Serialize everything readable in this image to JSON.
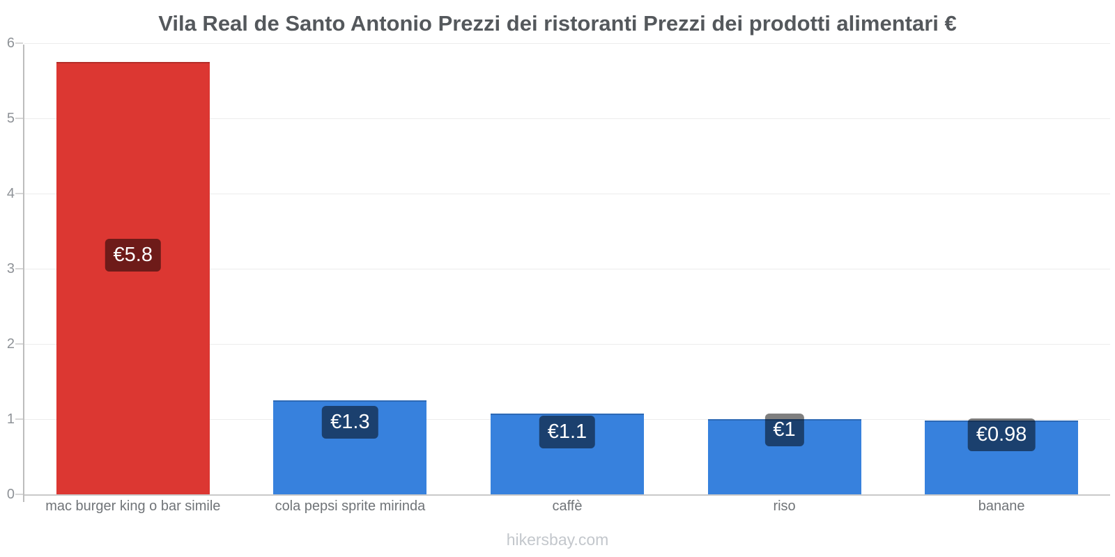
{
  "title": "Vila Real de Santo Antonio Prezzi dei ristoranti Prezzi dei prodotti alimentari €",
  "footer": {
    "watermark": "hikersbay.com"
  },
  "chart_data": {
    "type": "bar",
    "title": "Vila Real de Santo Antonio Prezzi dei ristoranti Prezzi dei prodotti alimentari €",
    "categories": [
      "mac burger king o bar simile",
      "cola pepsi sprite mirinda",
      "caffè",
      "riso",
      "banane"
    ],
    "values": [
      5.75,
      1.25,
      1.07,
      1.0,
      0.98
    ],
    "bar_labels": [
      "€5.8",
      "€1.3",
      "€1.1",
      "€1",
      "€0.98"
    ],
    "bar_colors": [
      "#dc3732",
      "#3781dd",
      "#3781dd",
      "#3781dd",
      "#3781dd"
    ],
    "xlabel": "",
    "ylabel": "",
    "ylim": [
      0,
      6
    ],
    "yticks": [
      0,
      1,
      2,
      3,
      4,
      5,
      6
    ],
    "grid": "horizontal-light",
    "legend": "none",
    "colors": {
      "background": "#ffffff",
      "title_text": "#54585c",
      "axis_line": "#bdbdbd",
      "baseline": "#c9c9c9",
      "grid_line": "#ececec",
      "tick_text": "#8e9297",
      "category_text": "#707478",
      "value_label_bg": "rgba(0,0,0,0.5)",
      "value_label_text": "#ffffff",
      "watermark_text": "#c3c7cc",
      "restaurant_bar": "#dc3732",
      "grocery_bar": "#3781dd"
    }
  }
}
